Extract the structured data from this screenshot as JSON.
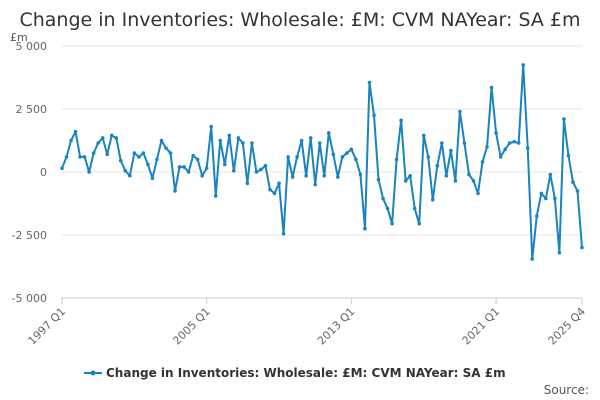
{
  "chart_data": {
    "type": "line",
    "title": "Change in Inventories: Wholesale: £M: CVM NAYear: SA £m",
    "unit_label": "£m",
    "ylim": [
      -5000,
      5000
    ],
    "y_ticks": [
      {
        "value": 5000,
        "label": "5 000"
      },
      {
        "value": 2500,
        "label": "2 500"
      },
      {
        "value": 0,
        "label": "0"
      },
      {
        "value": -2500,
        "label": "-2 500"
      },
      {
        "value": -5000,
        "label": "-5 000"
      }
    ],
    "x_ticks": [
      {
        "index": 0,
        "label": "1997 Q1"
      },
      {
        "index": 32,
        "label": "2005 Q1"
      },
      {
        "index": 64,
        "label": "2013 Q1"
      },
      {
        "index": 96,
        "label": "2021 Q1"
      },
      {
        "index": 115,
        "label": "2025 Q4"
      }
    ],
    "grid": true,
    "legend_position": "bottom",
    "series": [
      {
        "name": "Change in Inventories: Wholesale: £M: CVM NAYear: SA £m",
        "color": "#1a84be",
        "values": [
          150,
          600,
          1250,
          1600,
          600,
          600,
          0,
          750,
          1150,
          1350,
          700,
          1450,
          1350,
          450,
          50,
          -150,
          750,
          600,
          750,
          300,
          -250,
          500,
          1250,
          950,
          750,
          -750,
          200,
          200,
          0,
          650,
          500,
          -150,
          150,
          1800,
          -950,
          1250,
          300,
          1450,
          50,
          1350,
          1150,
          -450,
          1150,
          0,
          100,
          250,
          -700,
          -850,
          -450,
          -2450,
          600,
          -200,
          600,
          1250,
          -150,
          1350,
          -500,
          1150,
          -150,
          1550,
          700,
          -200,
          600,
          750,
          900,
          500,
          -100,
          -2250,
          3550,
          2250,
          -300,
          -1050,
          -1450,
          -2050,
          500,
          2050,
          -350,
          -150,
          -1450,
          -2050,
          1450,
          600,
          -1100,
          250,
          1150,
          -150,
          850,
          -350,
          2400,
          1150,
          -100,
          -350,
          -850,
          400,
          1000,
          3350,
          1550,
          600,
          900,
          1150,
          1200,
          1150,
          4250,
          950,
          -3450,
          -1750,
          -850,
          -1050,
          -100,
          -1050,
          -3200,
          2100,
          650,
          -400,
          -750,
          -3000
        ]
      }
    ],
    "legend_label": "Change in Inventories: Wholesale: £M: CVM NAYear: SA £m",
    "source_label": "Source:"
  }
}
